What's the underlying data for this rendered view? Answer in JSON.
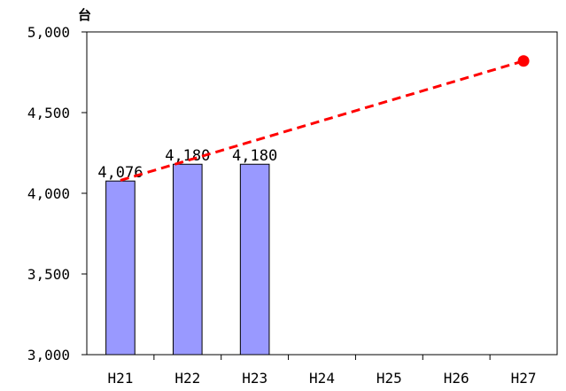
{
  "chart_data": {
    "type": "bar",
    "ylabel": "台",
    "ylim": [
      3000,
      5000
    ],
    "yticks": [
      3000,
      3500,
      4000,
      4500,
      5000
    ],
    "ytick_labels": [
      "3,000",
      "3,500",
      "4,000",
      "4,500",
      "5,000"
    ],
    "categories": [
      "H21",
      "H22",
      "H23",
      "H24",
      "H25",
      "H26",
      "H27"
    ],
    "series": [
      {
        "type": "bar",
        "values": [
          4076,
          4180,
          4180,
          null,
          null,
          null,
          null
        ],
        "data_labels": [
          "4,076",
          "4,180",
          "4,180",
          "",
          "",
          "",
          ""
        ],
        "color": "#9999ff",
        "edge_color": "#000000"
      },
      {
        "type": "line",
        "style": "dashed",
        "x": [
          "H21",
          "H27"
        ],
        "values": [
          4080,
          4820
        ],
        "color": "#ff0000",
        "endpoint_marker": "circle"
      }
    ],
    "grid": false,
    "legend": "none"
  }
}
